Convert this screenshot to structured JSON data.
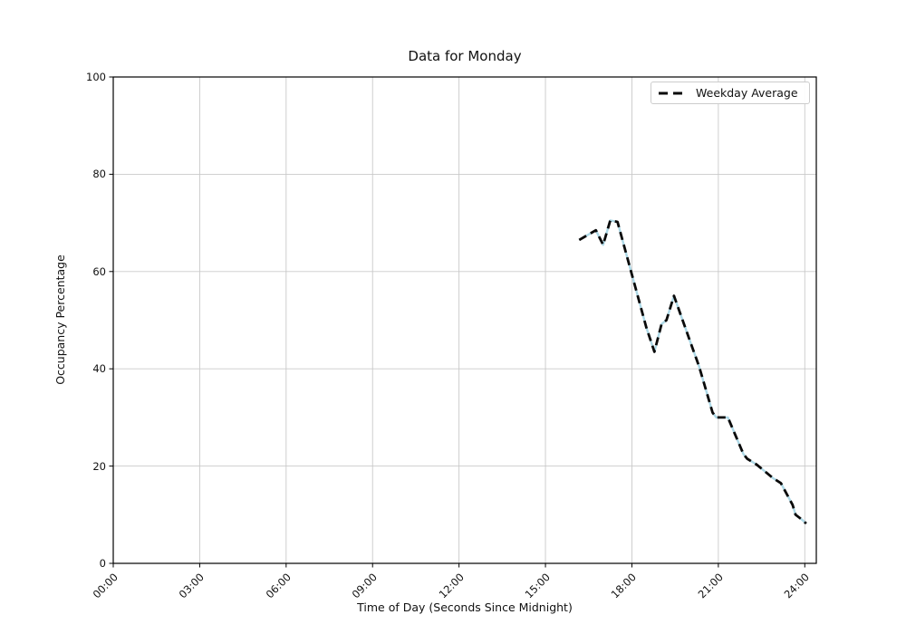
{
  "figure": {
    "background": "#ffffff"
  },
  "chart_data": {
    "type": "line",
    "title": "Data for Monday",
    "xlabel": "Time of Day (Seconds Since Midnight)",
    "ylabel": "Occupancy Percentage",
    "grid": true,
    "grid_color": "#c9c9c9",
    "xlim_hours": [
      0,
      24.4
    ],
    "ylim": [
      0,
      100
    ],
    "xticks": {
      "hours": [
        0,
        3,
        6,
        9,
        12,
        15,
        18,
        21,
        24
      ],
      "labels": [
        "00:00",
        "03:00",
        "06:00",
        "09:00",
        "12:00",
        "15:00",
        "18:00",
        "21:00",
        "24:00"
      ]
    },
    "yticks": {
      "values": [
        0,
        20,
        40,
        60,
        80,
        100
      ],
      "labels": [
        "0",
        "20",
        "40",
        "60",
        "80",
        "100"
      ]
    },
    "x_hours": [
      16.17,
      16.75,
      17.0,
      17.25,
      17.5,
      18.5,
      18.78,
      19.03,
      19.2,
      19.46,
      20.03,
      20.33,
      20.8,
      20.93,
      21.33,
      21.87,
      22.0,
      22.33,
      22.9,
      23.17,
      23.58,
      23.68,
      23.9,
      24.05
    ],
    "series": [
      {
        "name": "Monday",
        "color": "#add8e6",
        "dash": null,
        "width": 2.4,
        "in_legend": false,
        "values": [
          66.5,
          68.5,
          65.5,
          70.5,
          70.2,
          48.5,
          43.5,
          49.2,
          50.0,
          55.0,
          45.5,
          40.5,
          31.0,
          30.0,
          30.0,
          22.5,
          21.5,
          20.3,
          17.5,
          16.5,
          12.0,
          10.0,
          9.0,
          8.2
        ]
      },
      {
        "name": "Weekday Average",
        "color": "#0a0a0a",
        "dash": "9 5.5",
        "width": 2.8,
        "in_legend": true,
        "values": [
          66.5,
          68.5,
          65.5,
          70.5,
          70.2,
          48.5,
          43.5,
          49.2,
          50.0,
          55.0,
          45.5,
          40.5,
          31.0,
          30.0,
          30.0,
          22.5,
          21.5,
          20.3,
          17.5,
          16.5,
          12.0,
          10.0,
          9.0,
          8.2
        ]
      }
    ],
    "legend": {
      "position": "upper right",
      "items": [
        {
          "label": "Weekday Average",
          "line_style": "dashed",
          "color": "#0a0a0a"
        }
      ]
    }
  }
}
